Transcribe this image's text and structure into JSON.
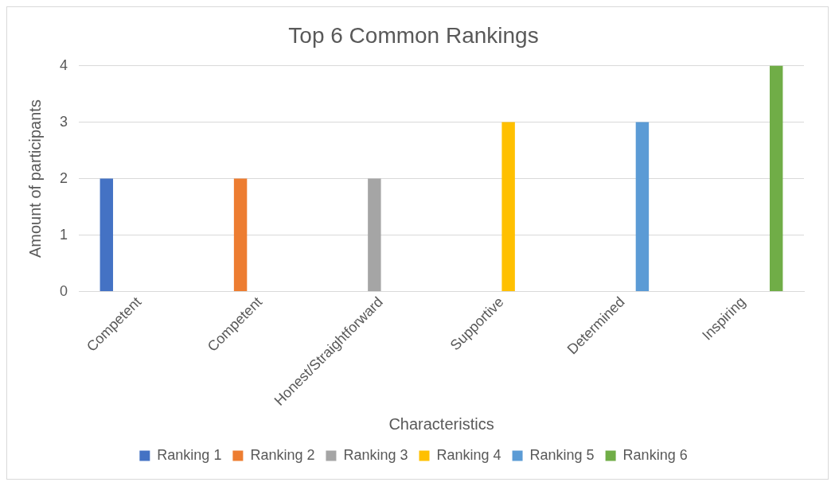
{
  "chart_data": {
    "type": "bar",
    "title": "Top 6 Common Rankings",
    "xlabel": "Characteristics",
    "ylabel": "Amount of participants",
    "categories": [
      "Competent",
      "Competent",
      "Honest/Straightforward",
      "Supportive",
      "Determined",
      "Inspiring"
    ],
    "series": [
      {
        "name": "Ranking 1",
        "color": "#4472c4",
        "values": [
          2,
          null,
          null,
          null,
          null,
          null
        ]
      },
      {
        "name": "Ranking 2",
        "color": "#ed7d31",
        "values": [
          null,
          2,
          null,
          null,
          null,
          null
        ]
      },
      {
        "name": "Ranking 3",
        "color": "#a5a5a5",
        "values": [
          null,
          null,
          2,
          null,
          null,
          null
        ]
      },
      {
        "name": "Ranking 4",
        "color": "#ffc000",
        "values": [
          null,
          null,
          null,
          3,
          null,
          null
        ]
      },
      {
        "name": "Ranking 5",
        "color": "#5b9bd5",
        "values": [
          null,
          null,
          null,
          null,
          3,
          null
        ]
      },
      {
        "name": "Ranking 6",
        "color": "#70ad47",
        "values": [
          null,
          null,
          null,
          null,
          null,
          4
        ]
      }
    ],
    "ylim": [
      0,
      4
    ],
    "yticks": [
      0,
      1,
      2,
      3,
      4
    ],
    "grid": "y",
    "legend": "bottom"
  }
}
